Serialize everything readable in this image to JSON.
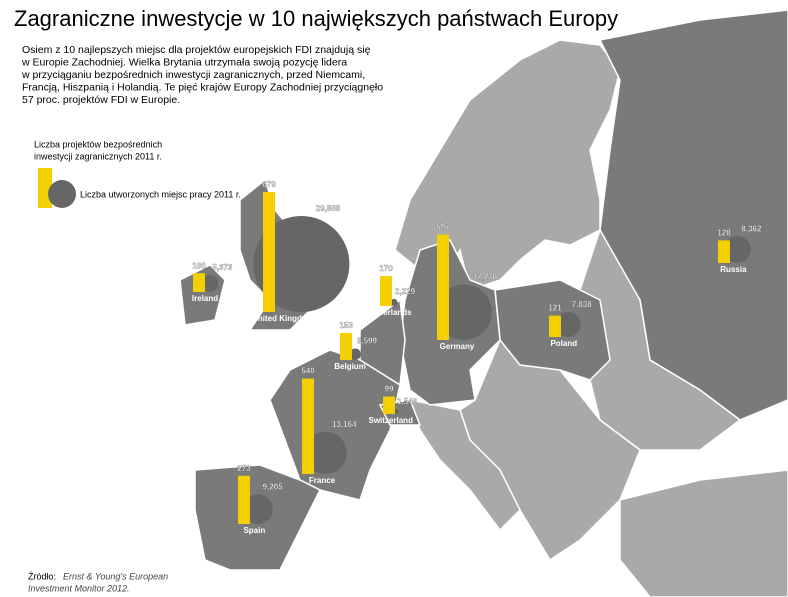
{
  "title": "Zagraniczne inwestycje w 10 największych państwach Europy",
  "description": [
    "Osiem z 10 najlepszych miejsc dla projektów europejskich FDI znajdują się",
    "w Europie Zachodniej. Wielka Brytania utrzymała swoją pozycję lidera",
    "w przyciąganiu bezpośrednich inwestycji zagranicznych, przed Niemcami,",
    "Francją, Hiszpanią i Holandią. Te pięć krajów Europy Zachodniej przyciągnęło",
    "57 proc. projektów FDI  w Europie."
  ],
  "legend": {
    "projects": [
      "Liczba projektów bezpośrednich",
      "inwestycji zagranicznych 2011 r."
    ],
    "jobs": "Liczba utworzonych miejsc pracy 2011 r."
  },
  "countries": [
    {
      "name": "United Kingdom",
      "projects": 679,
      "jobs": 29888,
      "jobs_label": "29,888"
    },
    {
      "name": "Germany",
      "projects": 597,
      "jobs": 17276,
      "jobs_label": "17,276"
    },
    {
      "name": "France",
      "projects": 540,
      "jobs": 13164,
      "jobs_label": "13,164"
    },
    {
      "name": "Spain",
      "projects": 273,
      "jobs": 9205,
      "jobs_label": "9,205"
    },
    {
      "name": "Netherlands",
      "projects": 170,
      "jobs": 2229,
      "jobs_label": "2,229"
    },
    {
      "name": "Belgium",
      "projects": 153,
      "jobs": 3599,
      "jobs_label": "3,599"
    },
    {
      "name": "Russia",
      "projects": 128,
      "jobs": 8362,
      "jobs_label": "8,362"
    },
    {
      "name": "Poland",
      "projects": 121,
      "jobs": 7838,
      "jobs_label": "7,838"
    },
    {
      "name": "Ireland",
      "projects": 106,
      "jobs": 5373,
      "jobs_label": "5,373"
    },
    {
      "name": "Switzerland",
      "projects": 99,
      "jobs": 1546,
      "jobs_label": "1,546"
    }
  ],
  "source": {
    "label": "Źródło:",
    "text": [
      "Ernst & Young's European",
      "Investment Monitor 2012."
    ]
  }
}
